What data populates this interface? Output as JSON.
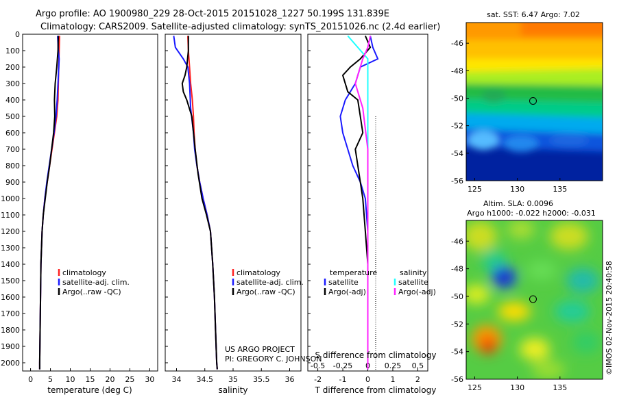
{
  "header": {
    "line1": "Argo profile: AO 1900980_229 28-Oct-2015 20151028_1227 50.199S 131.839E",
    "line2": "Climatology: CARS2009. Satellite-adjusted climatology: synTS_20151026.nc (2.4d earlier)"
  },
  "credits": {
    "project": "US ARGO PROJECT",
    "pi": "PI: GREGORY C. JOHNSON",
    "stamp": "©IMOS 02-Nov-2015 20:40:58"
  },
  "colors": {
    "climatology": "#ff2020",
    "satellite": "#1a1aff",
    "argo": "#000000",
    "satellite_sal": "#22ffff",
    "argo_sal": "#ff22ff"
  },
  "chart_data": [
    {
      "type": "line",
      "xlabel": "temperature (deg C)",
      "xlim": [
        -2,
        32
      ],
      "ylim": [
        0,
        2050
      ],
      "xticks": [
        "0",
        "5",
        "10",
        "15",
        "20",
        "25",
        "30"
      ],
      "xtick_values": [
        0,
        5,
        10,
        15,
        20,
        25,
        30
      ],
      "yticks": [
        "0",
        "100",
        "200",
        "300",
        "400",
        "500",
        "600",
        "700",
        "800",
        "900",
        "1000",
        "1100",
        "1200",
        "1300",
        "1400",
        "1500",
        "1600",
        "1700",
        "1800",
        "1900",
        "2000"
      ],
      "ytick_values": [
        0,
        100,
        200,
        300,
        400,
        500,
        600,
        700,
        800,
        900,
        1000,
        1100,
        1200,
        1300,
        1400,
        1500,
        1600,
        1700,
        1800,
        1900,
        2000
      ],
      "legend": [
        "climatology",
        "satellite-adj. clim.",
        "Argo(..raw -QC)"
      ],
      "series": [
        {
          "name": "climatology",
          "x": [
            7.3,
            7.2,
            7.1,
            7.0,
            6.9,
            6.6,
            6.0,
            5.4,
            4.8,
            4.2,
            3.6,
            3.2,
            2.9,
            2.6,
            2.5,
            2.4,
            2.3,
            2.3
          ],
          "y": [
            10,
            100,
            200,
            300,
            400,
            500,
            600,
            700,
            800,
            900,
            1000,
            1100,
            1200,
            1400,
            1600,
            1800,
            2000,
            2040
          ]
        },
        {
          "name": "satellite-adj. clim.",
          "x": [
            6.8,
            7.0,
            7.2,
            6.9,
            6.7,
            6.4,
            5.9,
            5.3,
            4.7,
            4.1,
            3.6,
            3.2,
            2.9,
            2.6,
            2.5,
            2.4,
            2.3,
            2.3
          ],
          "y": [
            10,
            100,
            150,
            300,
            400,
            500,
            600,
            700,
            800,
            900,
            1000,
            1100,
            1200,
            1400,
            1600,
            1800,
            2000,
            2040
          ]
        },
        {
          "name": "Argo(..raw -QC)",
          "x": [
            7.0,
            6.9,
            6.6,
            6.2,
            6.0,
            6.1,
            5.8,
            5.3,
            4.8,
            4.2,
            3.7,
            3.2,
            2.9,
            2.6,
            2.5,
            2.4,
            2.3,
            2.3
          ],
          "y": [
            10,
            100,
            200,
            300,
            400,
            500,
            600,
            700,
            800,
            900,
            1000,
            1100,
            1200,
            1400,
            1600,
            1800,
            2000,
            2040
          ]
        }
      ]
    },
    {
      "type": "line",
      "xlabel": "salinity",
      "xlim": [
        33.8,
        36.2
      ],
      "ylim": [
        0,
        2050
      ],
      "xticks": [
        "34",
        "34.5",
        "35",
        "35.5",
        "36"
      ],
      "xtick_values": [
        34,
        34.5,
        35,
        35.5,
        36
      ],
      "legend": [
        "climatology",
        "satellite-adj. clim.",
        "Argo(..raw -QC)"
      ],
      "series": [
        {
          "name": "climatology",
          "x": [
            34.2,
            34.21,
            34.23,
            34.25,
            34.28,
            34.3,
            34.31,
            34.33,
            34.36,
            34.41,
            34.47,
            34.54,
            34.6,
            34.64,
            34.67,
            34.69,
            34.71,
            34.72
          ],
          "y": [
            10,
            100,
            200,
            300,
            400,
            500,
            600,
            700,
            800,
            900,
            1000,
            1100,
            1200,
            1400,
            1600,
            1800,
            2000,
            2040
          ]
        },
        {
          "name": "satellite-adj. clim.",
          "x": [
            33.95,
            33.98,
            34.12,
            34.2,
            34.23,
            34.25,
            34.3,
            34.32,
            34.36,
            34.41,
            34.47,
            34.54,
            34.6,
            34.64,
            34.67,
            34.69,
            34.71,
            34.72
          ],
          "y": [
            10,
            80,
            150,
            200,
            300,
            450,
            600,
            700,
            800,
            900,
            1000,
            1100,
            1200,
            1400,
            1600,
            1800,
            2000,
            2040
          ]
        },
        {
          "name": "Argo(..raw -QC)",
          "x": [
            34.21,
            34.21,
            34.18,
            34.15,
            34.1,
            34.12,
            34.18,
            34.27,
            34.33,
            34.38,
            34.45,
            34.53,
            34.6,
            34.64,
            34.67,
            34.69,
            34.71,
            34.72
          ],
          "y": [
            10,
            100,
            200,
            250,
            300,
            350,
            400,
            500,
            700,
            850,
            1000,
            1100,
            1200,
            1400,
            1600,
            1800,
            2000,
            2040
          ]
        }
      ]
    },
    {
      "type": "line",
      "xlabel": "T difference from climatology",
      "top_label": "S difference from climatology",
      "xlim": [
        -2.4,
        2.4
      ],
      "ylim": [
        0,
        2050
      ],
      "xticks": [
        "-2",
        "-1",
        "0",
        "1",
        "2"
      ],
      "xtick_values": [
        -2,
        -1,
        0,
        1,
        2
      ],
      "top_xticks": [
        "-0.5",
        "-0.25",
        "0",
        "0.25",
        "0.5"
      ],
      "legend_headers": [
        "temperature",
        "salinity"
      ],
      "legend": [
        "satellite",
        "Argo(-adj)",
        "satellite",
        "Argo(-adj)"
      ],
      "series": [
        {
          "name": "satellite",
          "x": [
            0.1,
            0.2,
            0.4,
            -0.3,
            -0.5,
            -0.9,
            -1.1,
            -1.0,
            -0.8,
            -0.6,
            -0.3,
            -0.1,
            0.0,
            0.0,
            0.0,
            0.0
          ],
          "y": [
            10,
            80,
            150,
            200,
            300,
            400,
            500,
            600,
            700,
            800,
            900,
            1000,
            1200,
            1400,
            1600,
            2040
          ]
        },
        {
          "name": "Argo(-adj)",
          "x": [
            -0.1,
            0.1,
            -0.3,
            -0.7,
            -1.0,
            -0.8,
            -0.4,
            -0.3,
            -0.2,
            -0.5,
            -0.3,
            -0.2,
            -0.1,
            0.0,
            0.0,
            0.0
          ],
          "y": [
            10,
            80,
            150,
            200,
            250,
            350,
            400,
            500,
            600,
            700,
            900,
            1000,
            1200,
            1400,
            1600,
            2040
          ]
        },
        {
          "name": "satellite",
          "x": [
            -0.8,
            -0.4,
            0.0,
            0.0,
            0.0,
            0.0,
            0.0
          ],
          "y": [
            10,
            80,
            150,
            300,
            500,
            1000,
            2040
          ]
        },
        {
          "name": "Argo(-adj)",
          "x": [
            0.1,
            0.0,
            -0.2,
            -0.5,
            -0.2,
            0.0,
            0.0
          ],
          "y": [
            10,
            80,
            150,
            300,
            450,
            700,
            2040
          ]
        }
      ]
    },
    {
      "type": "heatmap",
      "title": "sat. SST: 6.47 Argo: 7.02",
      "xlim": [
        124,
        140
      ],
      "ylim": [
        -56,
        -44.5
      ],
      "xticks": [
        "125",
        "130",
        "135"
      ],
      "xtick_values": [
        125,
        130,
        135
      ],
      "yticks": [
        "-46",
        "-48",
        "-50",
        "-52",
        "-54",
        "-56"
      ],
      "ytick_values": [
        -46,
        -48,
        -50,
        -52,
        -54,
        -56
      ],
      "marker": {
        "lon": 131.839,
        "lat": -50.199
      }
    },
    {
      "type": "heatmap",
      "title": "Altim. SLA: 0.0096",
      "subtitle": "Argo h1000: -0.022 h2000: -0.031",
      "xlim": [
        124,
        140
      ],
      "ylim": [
        -56,
        -44.5
      ],
      "xticks": [
        "125",
        "130",
        "135"
      ],
      "xtick_values": [
        125,
        130,
        135
      ],
      "yticks": [
        "-46",
        "-48",
        "-50",
        "-52",
        "-54",
        "-56"
      ],
      "ytick_values": [
        -46,
        -48,
        -50,
        -52,
        -54,
        -56
      ],
      "marker": {
        "lon": 131.839,
        "lat": -50.199
      }
    }
  ]
}
